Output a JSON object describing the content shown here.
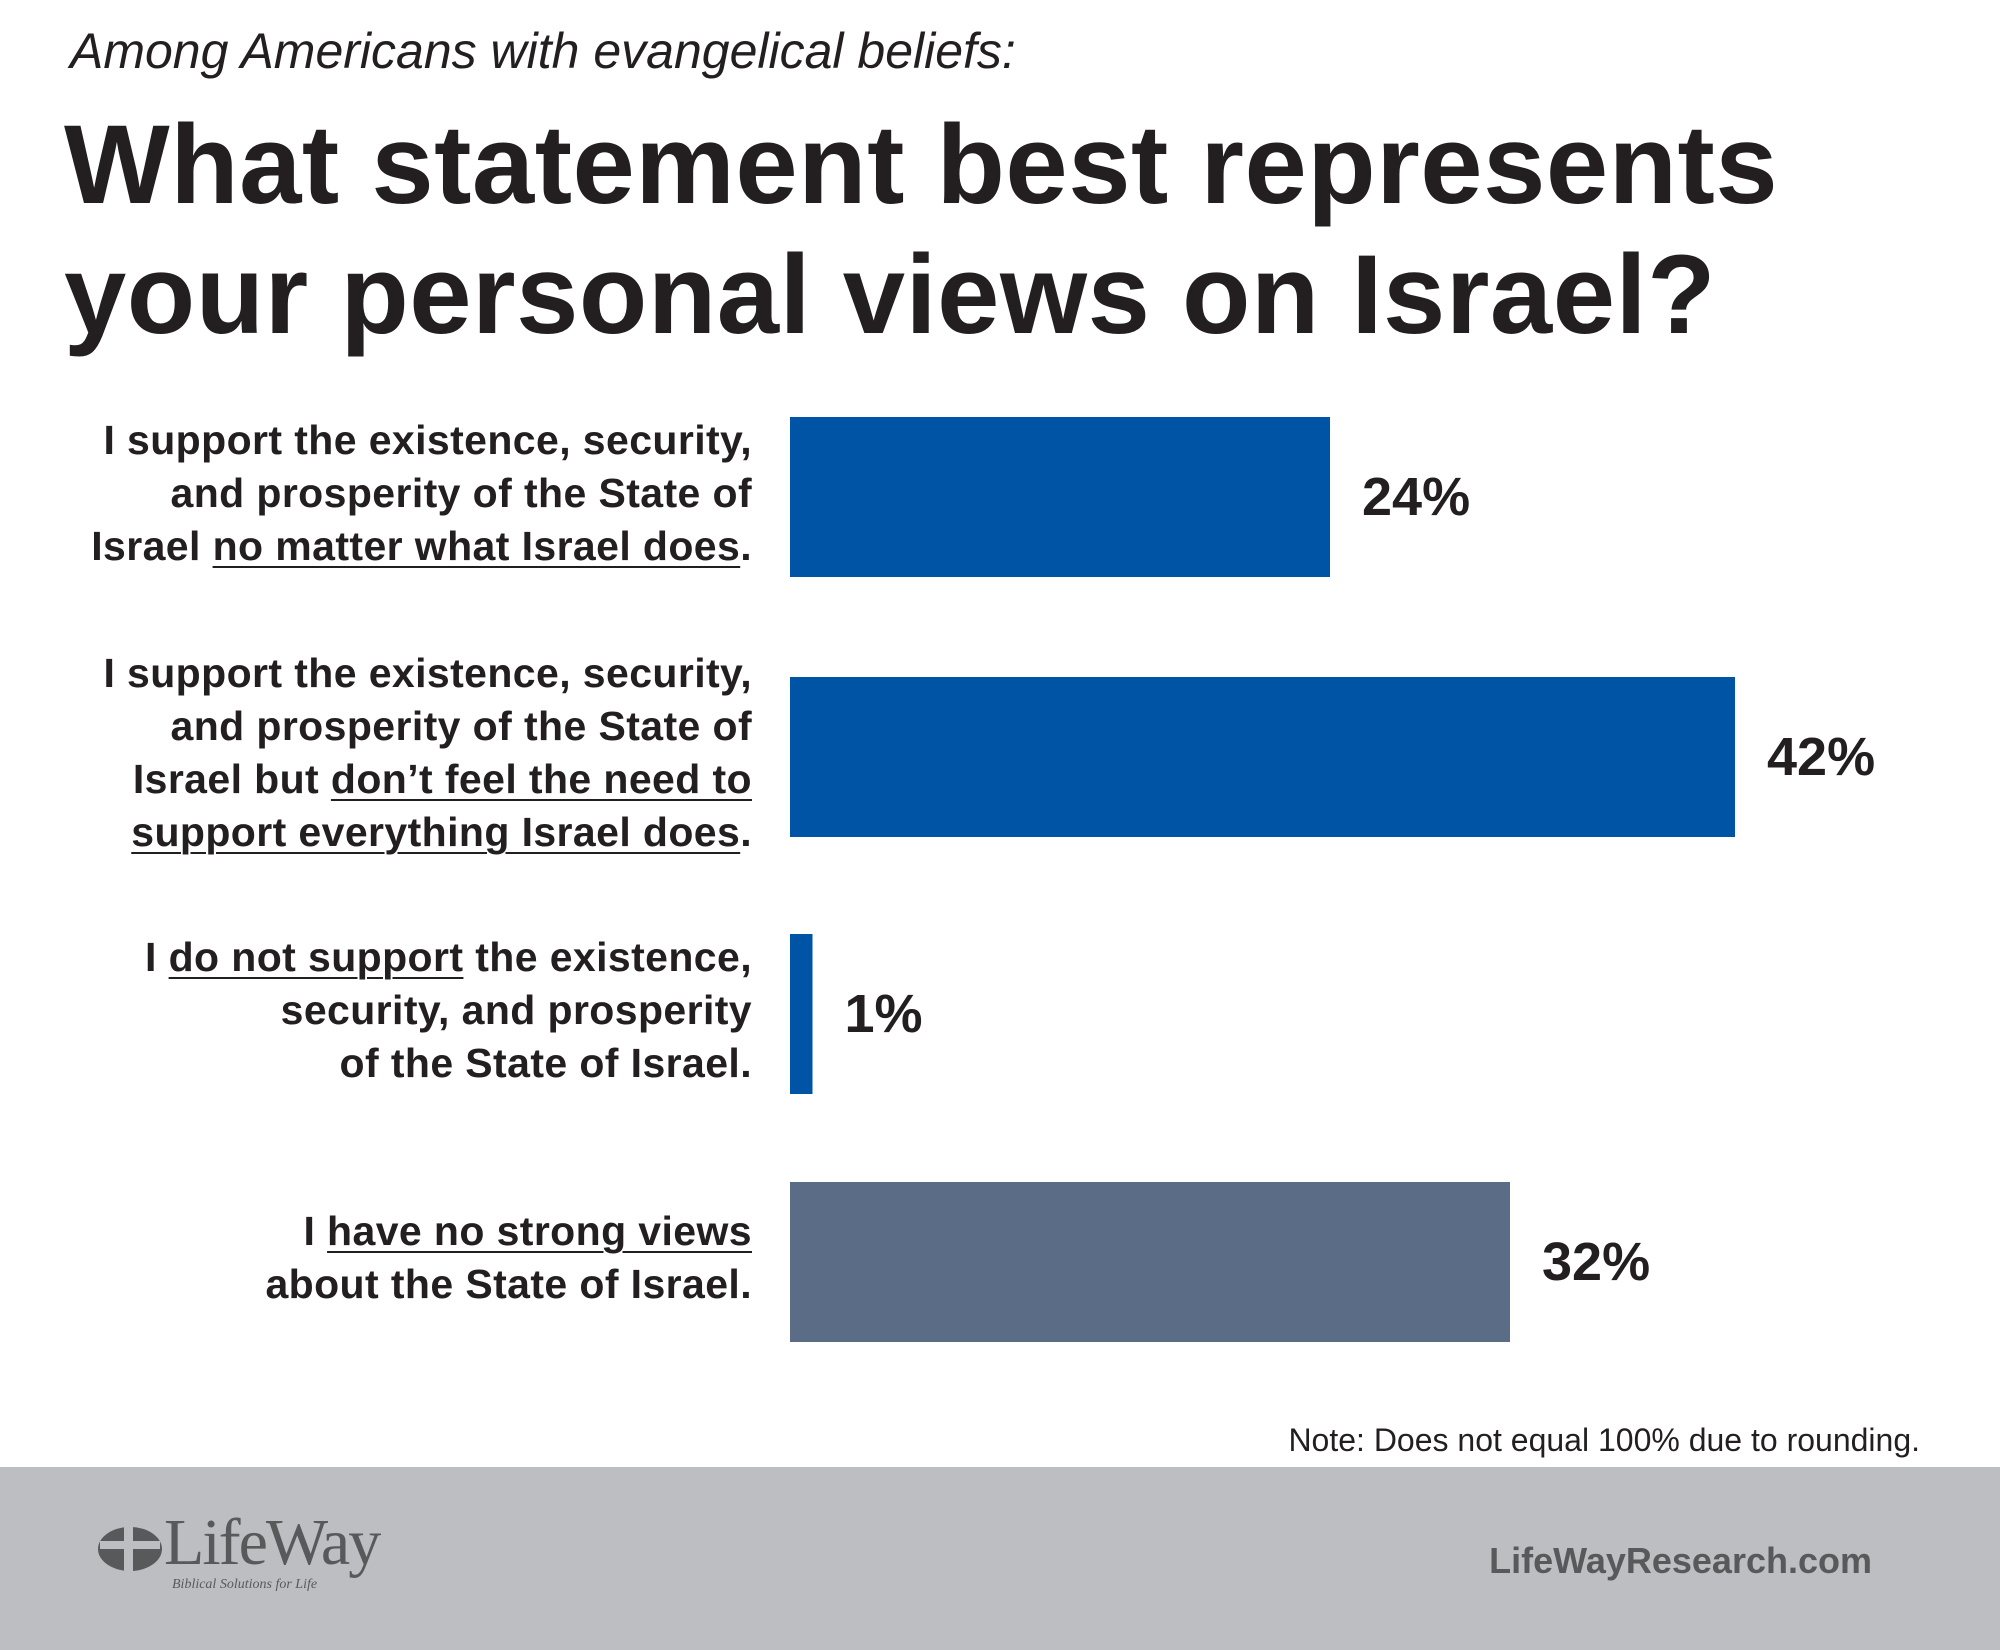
{
  "header": {
    "subtitle": "Among Americans with evangelical beliefs:",
    "title": "What statement best represents your personal views on Israel?"
  },
  "chart_data": {
    "type": "bar",
    "orientation": "horizontal",
    "categories": [
      "I support the existence, security, and prosperity of the State of Israel no matter what Israel does.",
      "I support the existence, security, and prosperity of the State of Israel but don’t feel the need to support everything Israel does.",
      "I do not support the existence, security, and prosperity of the State of Israel.",
      "I have no strong views about the State of Israel."
    ],
    "category_lines": [
      [
        [
          {
            "t": "I support the existence, security,"
          }
        ],
        [
          {
            "t": "and prosperity of the State of"
          }
        ],
        [
          {
            "t": "Israel "
          },
          {
            "t": "no matter what Israel does",
            "u": true
          },
          {
            "t": "."
          }
        ]
      ],
      [
        [
          {
            "t": "I support the existence, security,"
          }
        ],
        [
          {
            "t": "and prosperity of the State of"
          }
        ],
        [
          {
            "t": "Israel but "
          },
          {
            "t": "don’t feel the need to",
            "u": true
          }
        ],
        [
          {
            "t": "support everything Israel does",
            "u": true
          },
          {
            "t": "."
          }
        ]
      ],
      [
        [
          {
            "t": "I "
          },
          {
            "t": "do not support",
            "u": true
          },
          {
            "t": " the existence,"
          }
        ],
        [
          {
            "t": "security, and prosperity"
          }
        ],
        [
          {
            "t": "of the State of Israel."
          }
        ]
      ],
      [
        [
          {
            "t": "I "
          },
          {
            "t": "have no strong views",
            "u": true
          }
        ],
        [
          {
            "t": "about the State of Israel."
          }
        ]
      ]
    ],
    "values": [
      24,
      42,
      1,
      32
    ],
    "value_labels": [
      "24%",
      "42%",
      "1%",
      "32%"
    ],
    "bar_colors": [
      "#0054a6",
      "#0054a6",
      "#0054a6",
      "#5a6c86"
    ],
    "xlim": [
      0,
      42
    ],
    "grid": false,
    "legend": "none"
  },
  "note": "Note: Does not equal 100% due to rounding.",
  "footer": {
    "logo_text": "LifeWay",
    "logo_tagline": "Biblical Solutions for Life",
    "website": "LifeWayResearch.com"
  }
}
